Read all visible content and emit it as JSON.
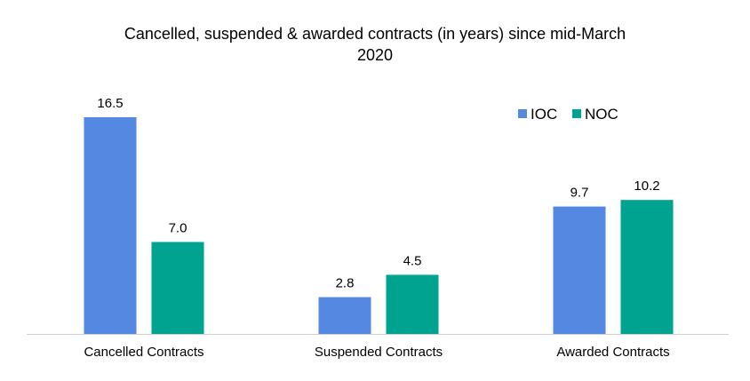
{
  "chart_data": {
    "type": "bar",
    "title": "Cancelled, suspended & awarded contracts (in years) since mid-March 2020",
    "title_lines": [
      "Cancelled, suspended & awarded contracts (in years) since mid-March",
      "2020"
    ],
    "categories": [
      "Cancelled Contracts",
      "Suspended Contracts",
      "Awarded Contracts"
    ],
    "series": [
      {
        "name": "IOC",
        "values": [
          16.5,
          2.8,
          9.7
        ],
        "labels": [
          "16.5",
          "2.8",
          "9.7"
        ],
        "color": "#5588E0"
      },
      {
        "name": "NOC",
        "values": [
          7.0,
          4.5,
          10.2
        ],
        "labels": [
          "7.0",
          "4.5",
          "10.2"
        ],
        "color": "#00A390"
      }
    ],
    "xlabel": "",
    "ylabel": "",
    "ylim": [
      0,
      16.5
    ],
    "grid": false,
    "legend": "top-right"
  }
}
